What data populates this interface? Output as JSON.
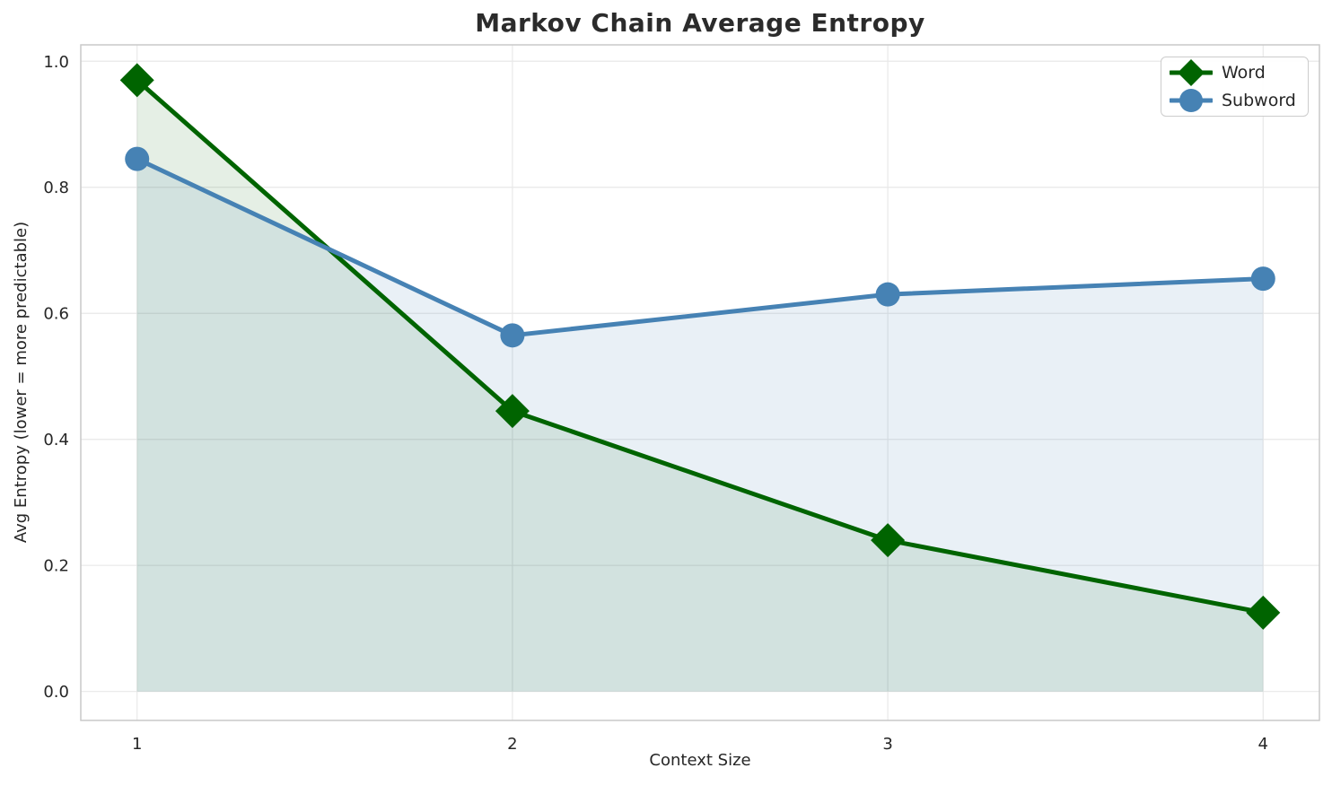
{
  "chart_data": {
    "type": "line",
    "title": "Markov Chain Average Entropy",
    "xlabel": "Context Size",
    "ylabel": "Avg Entropy (lower = more predictable)",
    "x": [
      1,
      2,
      3,
      4
    ],
    "xtick_labels": [
      "1",
      "2",
      "3",
      "4"
    ],
    "ytick_values": [
      0.0,
      0.2,
      0.4,
      0.6,
      0.8,
      1.0
    ],
    "ytick_labels": [
      "0.0",
      "0.2",
      "0.4",
      "0.6",
      "0.8",
      "1.0"
    ],
    "xlim": [
      0.85,
      4.15
    ],
    "ylim": [
      -0.046,
      1.026
    ],
    "grid": true,
    "area_fill_to_zero": true,
    "legend_position": "upper right",
    "series": [
      {
        "name": "Word",
        "color": "#006400",
        "marker": "diamond",
        "fill_opacity": 0.1,
        "values": [
          0.97,
          0.445,
          0.24,
          0.125
        ]
      },
      {
        "name": "Subword",
        "color": "#4682B4",
        "marker": "circle",
        "fill_opacity": 0.12,
        "values": [
          0.845,
          0.565,
          0.63,
          0.655
        ]
      }
    ],
    "style": {
      "text_color": "#262626",
      "grid_color": "#e8e8e8",
      "spine_color": "#c9c9c9"
    }
  }
}
